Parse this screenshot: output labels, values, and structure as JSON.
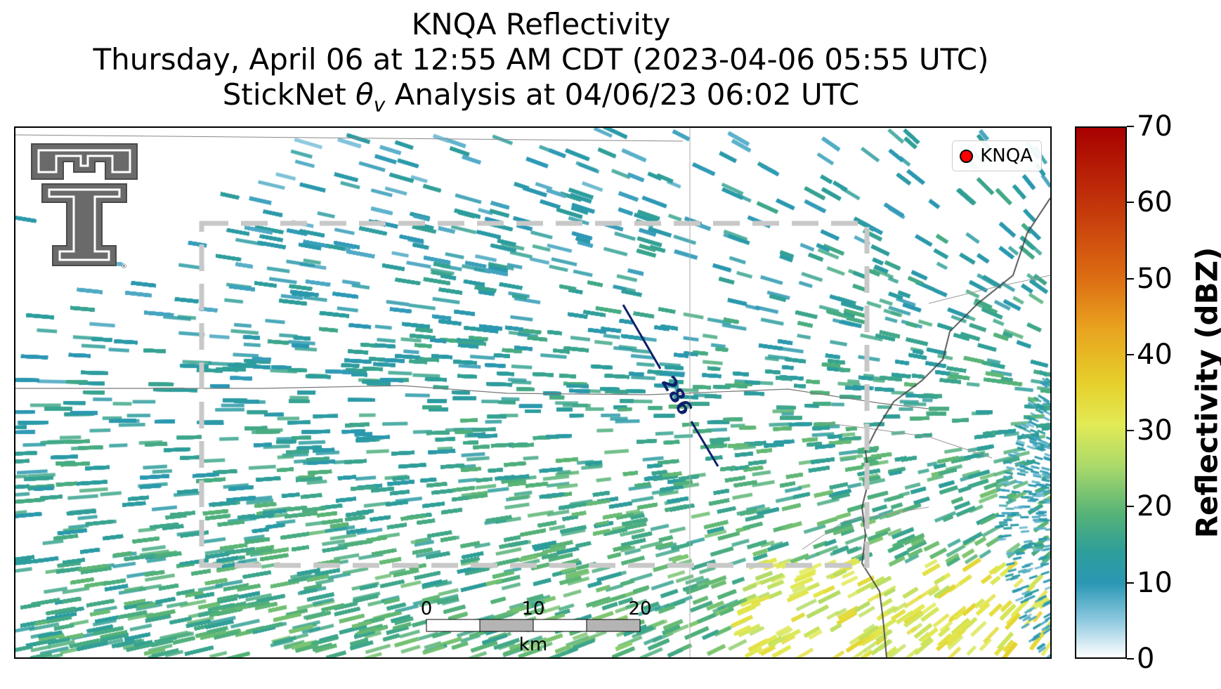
{
  "title": {
    "line1": "KNQA Reflectivity",
    "line2": "Thursday, April 06 at 12:55 AM CDT (2023-04-06 05:55 UTC)",
    "line3_prefix": "StickNet ",
    "line3_symbol": "θ",
    "line3_subscript": "v",
    "line3_suffix": " Analysis at 04/06/23 06:02 UTC"
  },
  "legend": {
    "label": "KNQA",
    "marker_color": "#ff0000"
  },
  "contour": {
    "label": "286",
    "color": "#0d1f6b"
  },
  "scalebar": {
    "ticks": [
      "0",
      "10",
      "20"
    ],
    "unit": "km"
  },
  "colorbar": {
    "title": "Reflectivity (dBZ)",
    "min": 0,
    "max": 70,
    "ticks": [
      "0",
      "10",
      "20",
      "30",
      "40",
      "50",
      "60",
      "70"
    ],
    "colors": [
      "#ffffff",
      "#2a97b4",
      "#55b277",
      "#a9d96a",
      "#e6cf2a",
      "#e9a320",
      "#c53b0c",
      "#a80000"
    ]
  },
  "logo": {
    "name": "Texas Tech double T",
    "color": "#666666"
  }
}
